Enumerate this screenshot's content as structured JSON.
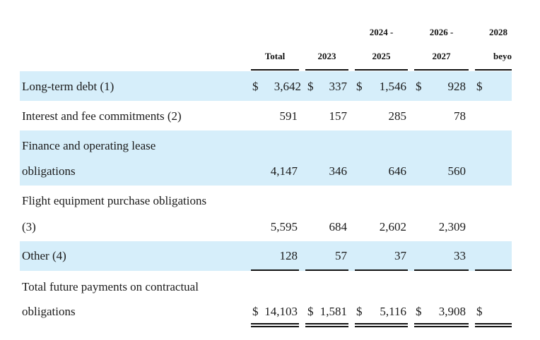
{
  "columns": [
    {
      "line1": "",
      "line2": "Total"
    },
    {
      "line1": "",
      "line2": "2023"
    },
    {
      "line1": "2024 -",
      "line2": "2025"
    },
    {
      "line1": "2026 -",
      "line2": "2027"
    },
    {
      "line1": "2028",
      "line2": "beyond"
    }
  ],
  "rows": [
    {
      "label": [
        "Long-term debt (1)"
      ],
      "cells": [
        {
          "cur": "$",
          "val": "3,642"
        },
        {
          "cur": "$",
          "val": "337"
        },
        {
          "cur": "$",
          "val": "1,546"
        },
        {
          "cur": "$",
          "val": "928"
        },
        {
          "cur": "$",
          "val": ""
        }
      ]
    },
    {
      "label": [
        "Interest and fee commitments (2)"
      ],
      "cells": [
        {
          "cur": "",
          "val": "591"
        },
        {
          "cur": "",
          "val": "157"
        },
        {
          "cur": "",
          "val": "285"
        },
        {
          "cur": "",
          "val": "78"
        },
        {
          "cur": "",
          "val": ""
        }
      ]
    },
    {
      "label": [
        "Finance and operating lease",
        "obligations"
      ],
      "cells": [
        {
          "cur": "",
          "val": "4,147"
        },
        {
          "cur": "",
          "val": "346"
        },
        {
          "cur": "",
          "val": "646"
        },
        {
          "cur": "",
          "val": "560"
        },
        {
          "cur": "",
          "val": ""
        }
      ]
    },
    {
      "label": [
        "Flight equipment purchase obligations",
        "(3)"
      ],
      "cells": [
        {
          "cur": "",
          "val": "5,595"
        },
        {
          "cur": "",
          "val": "684"
        },
        {
          "cur": "",
          "val": "2,602"
        },
        {
          "cur": "",
          "val": "2,309"
        },
        {
          "cur": "",
          "val": ""
        }
      ]
    },
    {
      "label": [
        "Other (4)"
      ],
      "cells": [
        {
          "cur": "",
          "val": "128"
        },
        {
          "cur": "",
          "val": "57"
        },
        {
          "cur": "",
          "val": "37"
        },
        {
          "cur": "",
          "val": "33"
        },
        {
          "cur": "",
          "val": ""
        }
      ]
    },
    {
      "label": [
        "Total future payments on contractual",
        "obligations"
      ],
      "cells": [
        {
          "cur": "$",
          "val": "14,103"
        },
        {
          "cur": "$",
          "val": "1,581"
        },
        {
          "cur": "$",
          "val": "5,116"
        },
        {
          "cur": "$",
          "val": "3,908"
        },
        {
          "cur": "$",
          "val": ""
        }
      ]
    }
  ],
  "colors": {
    "band": "#d6eefa",
    "text": "#1a1a1a",
    "rule": "#111111"
  }
}
